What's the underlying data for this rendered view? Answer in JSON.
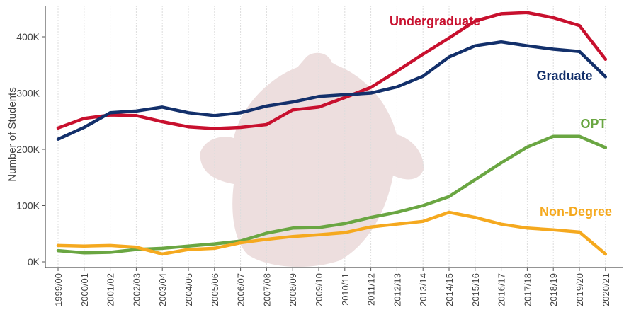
{
  "chart_data": {
    "type": "line",
    "ylabel": "Number of Students",
    "xlabel": "",
    "ylim": [
      0,
      450000
    ],
    "grid": "vertical",
    "y_ticks": [
      {
        "value": 0,
        "label": "0K"
      },
      {
        "value": 100000,
        "label": "100K"
      },
      {
        "value": 200000,
        "label": "200K"
      },
      {
        "value": 300000,
        "label": "300K"
      },
      {
        "value": 400000,
        "label": "400K"
      }
    ],
    "categories": [
      "1999/00",
      "2000/01",
      "2001/02",
      "2002/03",
      "2003/04",
      "2004/05",
      "2005/06",
      "2006/07",
      "2007/08",
      "2008/09",
      "2009/10",
      "2010/11",
      "2011/12",
      "2012/13",
      "2013/14",
      "2014/15",
      "2015/16",
      "2016/17",
      "2017/18",
      "2018/19",
      "2019/20",
      "2020/21"
    ],
    "series": [
      {
        "name": "Undergraduate",
        "color": "#c8102e",
        "values": [
          238000,
          255000,
          261000,
          260000,
          249000,
          240000,
          237000,
          239000,
          244000,
          270000,
          275000,
          292000,
          310000,
          339000,
          369000,
          398000,
          428000,
          441000,
          443000,
          434000,
          420000,
          360000
        ]
      },
      {
        "name": "Graduate",
        "color": "#13306b",
        "values": [
          218000,
          239000,
          265000,
          268000,
          275000,
          265000,
          260000,
          265000,
          277000,
          284000,
          294000,
          297000,
          300000,
          311000,
          330000,
          364000,
          384000,
          391000,
          384000,
          378000,
          374000,
          329000
        ]
      },
      {
        "name": "OPT",
        "color": "#6aa642",
        "values": [
          20000,
          16000,
          17000,
          22000,
          24000,
          28000,
          32000,
          37000,
          51000,
          60000,
          61000,
          68000,
          79000,
          88000,
          100000,
          116000,
          146000,
          176000,
          204000,
          223000,
          223000,
          203000
        ]
      },
      {
        "name": "Non-Degree",
        "color": "#f5a91f",
        "values": [
          29000,
          28000,
          29000,
          26000,
          14000,
          22000,
          24000,
          34000,
          40000,
          45000,
          48000,
          52000,
          62000,
          67000,
          72000,
          88000,
          79000,
          67000,
          60000,
          57000,
          53000,
          14000
        ]
      }
    ]
  },
  "colors": {
    "axis": "#555555",
    "grid": "#dddddd",
    "tick_text": "#444444",
    "watermark": "#eddede"
  }
}
